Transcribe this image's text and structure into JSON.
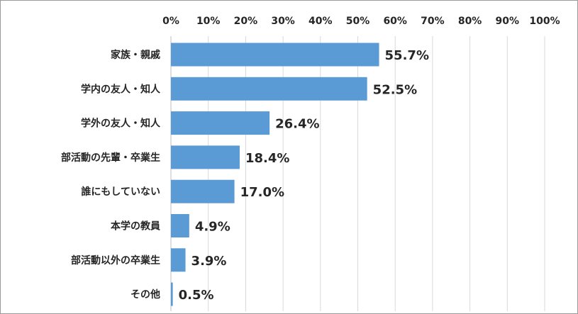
{
  "chart_data": {
    "type": "bar",
    "orientation": "horizontal",
    "categories": [
      "家族・親戚",
      "学内の友人・知人",
      "学外の友人・知人",
      "部活動の先輩・卒業生",
      "誰にもしていない",
      "本学の教員",
      "部活動以外の卒業生",
      "その他"
    ],
    "values": [
      55.7,
      52.5,
      26.4,
      18.4,
      17.0,
      4.9,
      3.9,
      0.5
    ],
    "value_labels": [
      "55.7%",
      "52.5%",
      "26.4%",
      "18.4%",
      "17.0%",
      "4.9%",
      "3.9%",
      "0.5%"
    ],
    "x_ticks": [
      "0%",
      "10%",
      "20%",
      "30%",
      "40%",
      "50%",
      "60%",
      "70%",
      "80%",
      "90%",
      "100%"
    ],
    "xlim": [
      0,
      100
    ],
    "x_axis_position": "top",
    "grid": true,
    "legend": "none",
    "bar_color": "#5b9bd5"
  }
}
